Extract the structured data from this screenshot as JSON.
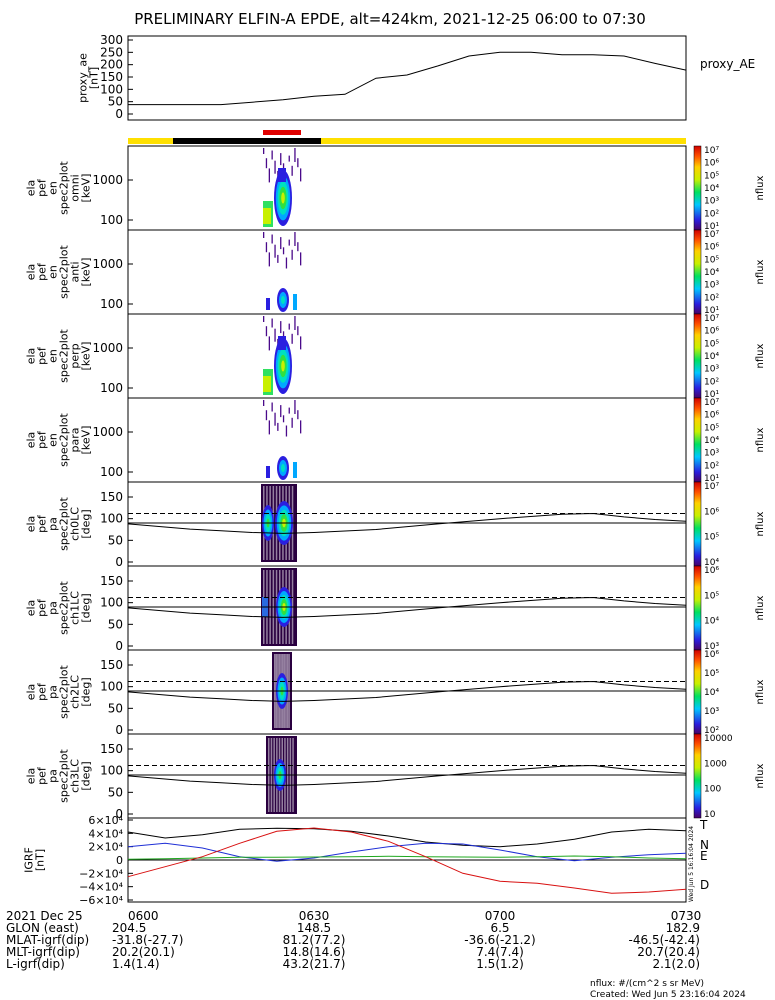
{
  "title": "PRELIMINARY ELFIN-A EPDE, alt=424km, 2021-12-25 06:00 to 07:30",
  "colors": {
    "bar_yellow": "#ffe000",
    "bar_black": "#000000",
    "bar_red": "#e00000",
    "bx": "#000000",
    "by": "#1f2fd6",
    "bz": "#1fa81f",
    "bd": "#d81010"
  },
  "panels": {
    "ae": {
      "ylabel_lines": [
        "proxy_ae",
        "[nT]"
      ],
      "yticks": [
        "300",
        "250",
        "200",
        "150",
        "100",
        "50",
        "0"
      ],
      "ylim": [
        0,
        310
      ],
      "series_label": "proxy_AE"
    },
    "spec_en": [
      {
        "ylabel_lines": [
          "ela",
          "pef",
          "en",
          "spec2plot",
          "omni",
          "[keV]"
        ],
        "yticks": [
          "1000",
          "100"
        ]
      },
      {
        "ylabel_lines": [
          "ela",
          "pef",
          "en",
          "spec2plot",
          "anti",
          "[keV]"
        ],
        "yticks": [
          "1000",
          "100"
        ]
      },
      {
        "ylabel_lines": [
          "ela",
          "pef",
          "en",
          "spec2plot",
          "perp",
          "[keV]"
        ],
        "yticks": [
          "1000",
          "100"
        ]
      },
      {
        "ylabel_lines": [
          "ela",
          "pef",
          "en",
          "spec2plot",
          "para",
          "[keV]"
        ],
        "yticks": [
          "1000",
          "100"
        ]
      }
    ],
    "spec_pa": [
      {
        "ylabel_lines": [
          "ela",
          "pef",
          "pa",
          "spec2plot",
          "ch0LC",
          "[deg]"
        ],
        "yticks": [
          "150",
          "100",
          "50",
          "0"
        ]
      },
      {
        "ylabel_lines": [
          "ela",
          "pef",
          "pa",
          "spec2plot",
          "ch1LC",
          "[deg]"
        ],
        "yticks": [
          "150",
          "100",
          "50",
          "0"
        ]
      },
      {
        "ylabel_lines": [
          "ela",
          "pef",
          "pa",
          "spec2plot",
          "ch2LC",
          "[deg]"
        ],
        "yticks": [
          "150",
          "100",
          "50",
          "0"
        ]
      },
      {
        "ylabel_lines": [
          "ela",
          "pef",
          "pa",
          "spec2plot",
          "ch3LC",
          "[deg]"
        ],
        "yticks": [
          "150",
          "100",
          "50",
          "0"
        ]
      }
    ],
    "igrf": {
      "ylabel_lines": [
        "IGRF",
        "[nT]"
      ],
      "yticks": [
        "6×10⁴",
        "4×10⁴",
        "2×10⁴",
        "0",
        "−2×10⁴",
        "−4×10⁴",
        "−6×10⁴"
      ],
      "legend": [
        "T",
        "N",
        "E",
        "D"
      ]
    }
  },
  "colorbars": [
    {
      "label": "nflux",
      "ticks": [
        "10⁷",
        "10⁶",
        "10⁵",
        "10⁴",
        "10³",
        "10²",
        "10¹"
      ]
    },
    {
      "label": "nflux",
      "ticks": [
        "10⁷",
        "10⁶",
        "10⁵",
        "10⁴",
        "10³",
        "10²",
        "10¹"
      ]
    },
    {
      "label": "nflux",
      "ticks": [
        "10⁷",
        "10⁶",
        "10⁵",
        "10⁴",
        "10³",
        "10²",
        "10¹"
      ]
    },
    {
      "label": "nflux",
      "ticks": [
        "10⁷",
        "10⁶",
        "10⁵",
        "10⁴",
        "10³",
        "10²",
        "10¹"
      ]
    },
    {
      "label": "nflux",
      "ticks": [
        "10⁷",
        "10⁶",
        "10⁵",
        "10⁴"
      ]
    },
    {
      "label": "nflux",
      "ticks": [
        "10⁶",
        "10⁵",
        "10⁴",
        "10³"
      ]
    },
    {
      "label": "nflux",
      "ticks": [
        "10⁶",
        "10⁵",
        "10⁴",
        "10³",
        "10²"
      ]
    },
    {
      "label": "nflux",
      "ticks": [
        "10000",
        "1000",
        "100",
        "10"
      ]
    }
  ],
  "chart_data": {
    "type": "line",
    "time_range": [
      "06:00",
      "07:30"
    ],
    "x_minutes": [
      0,
      5,
      10,
      15,
      20,
      25,
      30,
      35,
      40,
      45,
      50,
      55,
      60,
      65,
      70,
      75,
      80,
      85,
      90
    ],
    "proxy_ae": [
      38,
      38,
      38,
      38,
      48,
      58,
      72,
      80,
      145,
      158,
      195,
      235,
      250,
      250,
      240,
      240,
      235,
      205,
      178
    ],
    "pa_loss_cone_deg": 112,
    "pa_local_90_deg": 90,
    "igrf_T": [
      42000,
      33000,
      38000,
      46000,
      47500,
      47000,
      43000,
      36000,
      27000,
      22000,
      20000,
      24000,
      31000,
      42000,
      46000,
      44000
    ],
    "igrf_N": [
      20000,
      25000,
      18000,
      5000,
      -2000,
      3000,
      12000,
      20000,
      25000,
      24000,
      15000,
      5000,
      -1000,
      4000,
      8000,
      10000
    ],
    "igrf_E": [
      1000,
      2000,
      3000,
      4000,
      4000,
      4500,
      5000,
      5500,
      5000,
      4500,
      4000,
      5000,
      6000,
      5000,
      3000,
      2000
    ],
    "igrf_D": [
      -25000,
      -10000,
      5000,
      25000,
      43000,
      48000,
      42000,
      28000,
      5000,
      -20000,
      -32000,
      -35000,
      -42000,
      -50000,
      -48000,
      -44000
    ],
    "ephemeris": {
      "rows": [
        "2021 Dec 25",
        "GLON (east)",
        "MLAT-igrf(dip)",
        "MLT-igrf(dip)",
        "L-igrf(dip)"
      ],
      "times": [
        "0600",
        "0630",
        "0700",
        "0730"
      ],
      "values": [
        [
          "204.5",
          "148.5",
          "6.5",
          "182.9"
        ],
        [
          "-31.8(-27.7)",
          "81.2(77.2)",
          "-36.6(-21.2)",
          "-46.5(-42.4)"
        ],
        [
          "20.2(20.1)",
          "14.8(14.6)",
          "7.4(7.4)",
          "20.7(20.4)"
        ],
        [
          "1.4(1.4)",
          "43.2(21.7)",
          "1.5(1.2)",
          "2.1(2.0)"
        ]
      ]
    }
  },
  "footer": {
    "units": "nflux: #/(cm^2 s sr MeV)",
    "created": "Created: Wed Jun  5 23:16:04 2024",
    "side_stamp": "Wed Jun  5 16:16:04 2024"
  }
}
